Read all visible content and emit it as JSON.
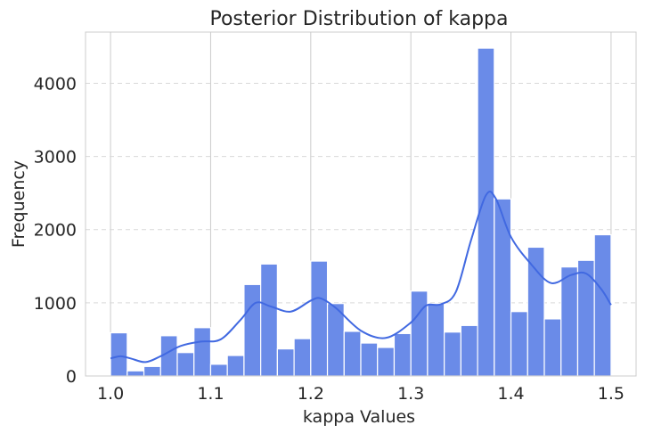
{
  "chart_data": {
    "type": "bar",
    "title": "Posterior Distribution of kappa",
    "xlabel": "kappa Values",
    "ylabel": "Frequency",
    "xlim": [
      0.975,
      1.525
    ],
    "ylim": [
      0,
      4700
    ],
    "x_ticks": [
      "1.0",
      "1.1",
      "1.2",
      "1.3",
      "1.4",
      "1.5"
    ],
    "x_tick_values": [
      1.0,
      1.1,
      1.2,
      1.3,
      1.4,
      1.5
    ],
    "y_ticks": [
      "0",
      "1000",
      "2000",
      "3000",
      "4000"
    ],
    "y_tick_values": [
      0,
      1000,
      2000,
      3000,
      4000
    ],
    "bin_start": 1.0,
    "bin_width": 0.016667,
    "values": [
      590,
      70,
      130,
      550,
      320,
      660,
      160,
      280,
      1250,
      1530,
      370,
      510,
      1570,
      990,
      610,
      450,
      390,
      580,
      1160,
      990,
      600,
      690,
      4480,
      2420,
      880,
      1760,
      780,
      1490,
      1580,
      1930
    ],
    "kde": {
      "x": [
        1.0,
        1.01,
        1.02,
        1.035,
        1.05,
        1.07,
        1.09,
        1.11,
        1.13,
        1.145,
        1.16,
        1.18,
        1.2,
        1.21,
        1.225,
        1.25,
        1.275,
        1.3,
        1.315,
        1.33,
        1.345,
        1.36,
        1.375,
        1.385,
        1.4,
        1.42,
        1.44,
        1.46,
        1.475,
        1.49,
        1.5
      ],
      "y": [
        240,
        270,
        240,
        190,
        270,
        410,
        470,
        500,
        770,
        1000,
        950,
        880,
        1030,
        1060,
        930,
        620,
        520,
        730,
        960,
        980,
        1150,
        1850,
        2470,
        2420,
        1900,
        1530,
        1270,
        1380,
        1400,
        1190,
        970
      ]
    },
    "bar_color": "#6a8be8",
    "kde_color": "#4169e1",
    "grid": true
  }
}
